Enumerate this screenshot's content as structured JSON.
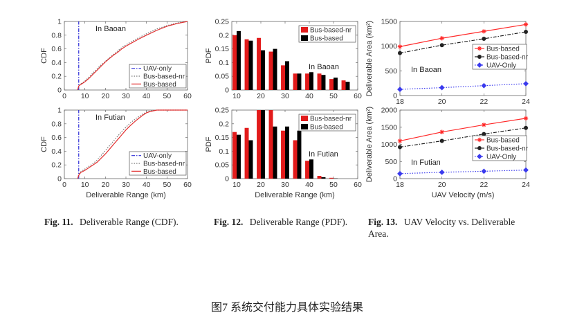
{
  "figures": [
    {
      "label": "Fig. 11.",
      "title": "Deliverable Range (CDF)."
    },
    {
      "label": "Fig. 12.",
      "title": "Deliverable Range (PDF)."
    },
    {
      "label": "Fig. 13.",
      "title": "UAV Velocity vs. Deliverable",
      "title_line2": "Area."
    }
  ],
  "main_caption": "图7 系统交付能力具体实验结果",
  "chart_data": [
    {
      "id": "cdf-baoan",
      "type": "line",
      "annotation": "In Baoan",
      "xlim": [
        0,
        60
      ],
      "ylim": [
        0,
        1
      ],
      "xticks": [
        0,
        10,
        20,
        30,
        40,
        50,
        60
      ],
      "yticks": [
        0,
        0.2,
        0.4,
        0.6,
        0.8,
        1
      ],
      "xlabel": "",
      "ylabel": "CDF",
      "legend_position": "bottom-right",
      "grid": false,
      "series": [
        {
          "name": "UAV-only",
          "color": "#2b2bd6",
          "dash": "dashdot",
          "x": [
            7,
            7,
            7
          ],
          "y": [
            0,
            0.5,
            1
          ]
        },
        {
          "name": "Bus-based-nr",
          "color": "#777777",
          "dash": "dotted",
          "x": [
            6.5,
            7,
            8,
            10,
            12,
            14,
            16,
            18,
            20,
            22,
            24,
            26,
            28,
            30,
            33,
            36,
            40,
            45,
            50,
            55,
            60
          ],
          "y": [
            0,
            0.06,
            0.09,
            0.13,
            0.19,
            0.25,
            0.31,
            0.37,
            0.42,
            0.47,
            0.52,
            0.57,
            0.62,
            0.66,
            0.71,
            0.76,
            0.82,
            0.89,
            0.94,
            0.98,
            1
          ]
        },
        {
          "name": "Bus-based",
          "color": "#e23030",
          "dash": "solid",
          "x": [
            6.5,
            7,
            8,
            10,
            12,
            14,
            16,
            18,
            20,
            22,
            24,
            26,
            28,
            30,
            33,
            36,
            40,
            45,
            50,
            55,
            60
          ],
          "y": [
            0,
            0.06,
            0.08,
            0.12,
            0.17,
            0.23,
            0.29,
            0.35,
            0.41,
            0.46,
            0.51,
            0.55,
            0.6,
            0.64,
            0.69,
            0.74,
            0.8,
            0.87,
            0.93,
            0.97,
            1
          ]
        }
      ]
    },
    {
      "id": "cdf-futian",
      "type": "line",
      "annotation": "In Futian",
      "xlim": [
        0,
        60
      ],
      "ylim": [
        0,
        1
      ],
      "xticks": [
        0,
        10,
        20,
        30,
        40,
        50,
        60
      ],
      "yticks": [
        0,
        0.2,
        0.4,
        0.6,
        0.8,
        1
      ],
      "xlabel": "Deliverable Range (km)",
      "ylabel": "CDF",
      "legend_position": "bottom-right",
      "grid": false,
      "series": [
        {
          "name": "UAV-only",
          "color": "#2b2bd6",
          "dash": "dashdot",
          "x": [
            7,
            7,
            7
          ],
          "y": [
            0,
            0.5,
            1
          ]
        },
        {
          "name": "Bus-based-nr",
          "color": "#777777",
          "dash": "dotted",
          "x": [
            6.5,
            7,
            8,
            10,
            12,
            14,
            16,
            18,
            20,
            22,
            24,
            26,
            28,
            30,
            32,
            35,
            38,
            40,
            42,
            45,
            50,
            60
          ],
          "y": [
            0,
            0.06,
            0.1,
            0.14,
            0.18,
            0.22,
            0.27,
            0.34,
            0.41,
            0.48,
            0.55,
            0.62,
            0.69,
            0.75,
            0.81,
            0.88,
            0.94,
            0.97,
            0.99,
            1,
            1,
            1
          ]
        },
        {
          "name": "Bus-based",
          "color": "#e23030",
          "dash": "solid",
          "x": [
            6.5,
            7,
            8,
            10,
            12,
            14,
            16,
            18,
            20,
            22,
            24,
            26,
            28,
            30,
            32,
            35,
            38,
            40,
            42,
            45,
            50,
            60
          ],
          "y": [
            0,
            0.05,
            0.09,
            0.12,
            0.16,
            0.2,
            0.24,
            0.3,
            0.36,
            0.43,
            0.5,
            0.57,
            0.64,
            0.71,
            0.77,
            0.85,
            0.92,
            0.96,
            0.98,
            1,
            1,
            1
          ]
        }
      ]
    },
    {
      "id": "pdf-baoan",
      "type": "bar",
      "annotation": "In Baoan",
      "xlim": [
        8,
        60
      ],
      "ylim": [
        0,
        0.25
      ],
      "xticks": [
        10,
        20,
        30,
        40,
        50,
        60
      ],
      "yticks": [
        0,
        0.05,
        0.1,
        0.15,
        0.2,
        0.25
      ],
      "xlabel": "",
      "ylabel": "PDF",
      "legend_position": "top-right",
      "grid": false,
      "bar_width": 1.7,
      "x": [
        10,
        15,
        20,
        25,
        30,
        35,
        40,
        45,
        50,
        55
      ],
      "series": [
        {
          "name": "Bus-based-nr",
          "color": "#e21b1b",
          "values": [
            0.2,
            0.185,
            0.19,
            0.14,
            0.09,
            0.06,
            0.06,
            0.06,
            0.04,
            0.035
          ]
        },
        {
          "name": "Bus-based",
          "color": "#000000",
          "values": [
            0.215,
            0.18,
            0.145,
            0.15,
            0.105,
            0.06,
            0.065,
            0.055,
            0.045,
            0.03
          ]
        }
      ]
    },
    {
      "id": "pdf-futian",
      "type": "bar",
      "annotation": "In Futian",
      "xlim": [
        8,
        60
      ],
      "ylim": [
        0,
        0.25
      ],
      "xticks": [
        10,
        20,
        30,
        40,
        50,
        60
      ],
      "yticks": [
        0,
        0.05,
        0.1,
        0.15,
        0.2,
        0.25
      ],
      "xlabel": "Deliverable Range (km)",
      "ylabel": "PDF",
      "legend_position": "top-right",
      "grid": false,
      "bar_width": 1.7,
      "x": [
        10,
        15,
        20,
        25,
        30,
        35,
        40,
        45,
        50,
        55
      ],
      "series": [
        {
          "name": "Bus-based-nr",
          "color": "#e21b1b",
          "values": [
            0.17,
            0.185,
            0.25,
            0.25,
            0.175,
            0.14,
            0.065,
            0.01,
            0.003,
            0.0
          ]
        },
        {
          "name": "Bus-based",
          "color": "#000000",
          "values": [
            0.16,
            0.14,
            0.25,
            0.19,
            0.19,
            0.175,
            0.07,
            0.005,
            0.001,
            0.0
          ]
        }
      ]
    },
    {
      "id": "area-baoan",
      "type": "line",
      "annotation": "In Baoan",
      "xlim": [
        18,
        24
      ],
      "ylim": [
        0,
        1500
      ],
      "xticks": [
        18,
        20,
        22,
        24
      ],
      "yticks": [
        0,
        500,
        1000,
        1500
      ],
      "xlabel": "",
      "ylabel": "Deliverable Area (km²)",
      "legend_position": "middle-right",
      "grid": false,
      "x": [
        18,
        20,
        22,
        24
      ],
      "series": [
        {
          "name": "Bus-based",
          "color": "#ff2a2a",
          "dash": "solid",
          "marker": "star",
          "values": [
            990,
            1160,
            1300,
            1440
          ]
        },
        {
          "name": "Bus-based-nr",
          "color": "#222222",
          "dash": "dashdot",
          "marker": "circle",
          "values": [
            860,
            1020,
            1150,
            1290
          ]
        },
        {
          "name": "UAV-Only",
          "color": "#3a3aee",
          "dash": "dotted",
          "marker": "diamond",
          "values": [
            125,
            160,
            200,
            240
          ]
        }
      ]
    },
    {
      "id": "area-futian",
      "type": "line",
      "annotation": "In Futian",
      "xlim": [
        18,
        24
      ],
      "ylim": [
        0,
        2000
      ],
      "xticks": [
        18,
        20,
        22,
        24
      ],
      "yticks": [
        0,
        500,
        1000,
        1500,
        2000
      ],
      "xlabel": "UAV Velocity (m/s)",
      "ylabel": "Deliverable Area (km²)",
      "legend_position": "middle-right",
      "grid": false,
      "x": [
        18,
        20,
        22,
        24
      ],
      "series": [
        {
          "name": "Bus-based",
          "color": "#ff2a2a",
          "dash": "solid",
          "marker": "star",
          "values": [
            1100,
            1360,
            1570,
            1760
          ]
        },
        {
          "name": "Bus-based-nr",
          "color": "#222222",
          "dash": "dashdot",
          "marker": "circle",
          "values": [
            920,
            1100,
            1300,
            1480
          ]
        },
        {
          "name": "UAV-Only",
          "color": "#3a3aee",
          "dash": "dotted",
          "marker": "diamond",
          "values": [
            145,
            185,
            215,
            250
          ]
        }
      ]
    }
  ]
}
